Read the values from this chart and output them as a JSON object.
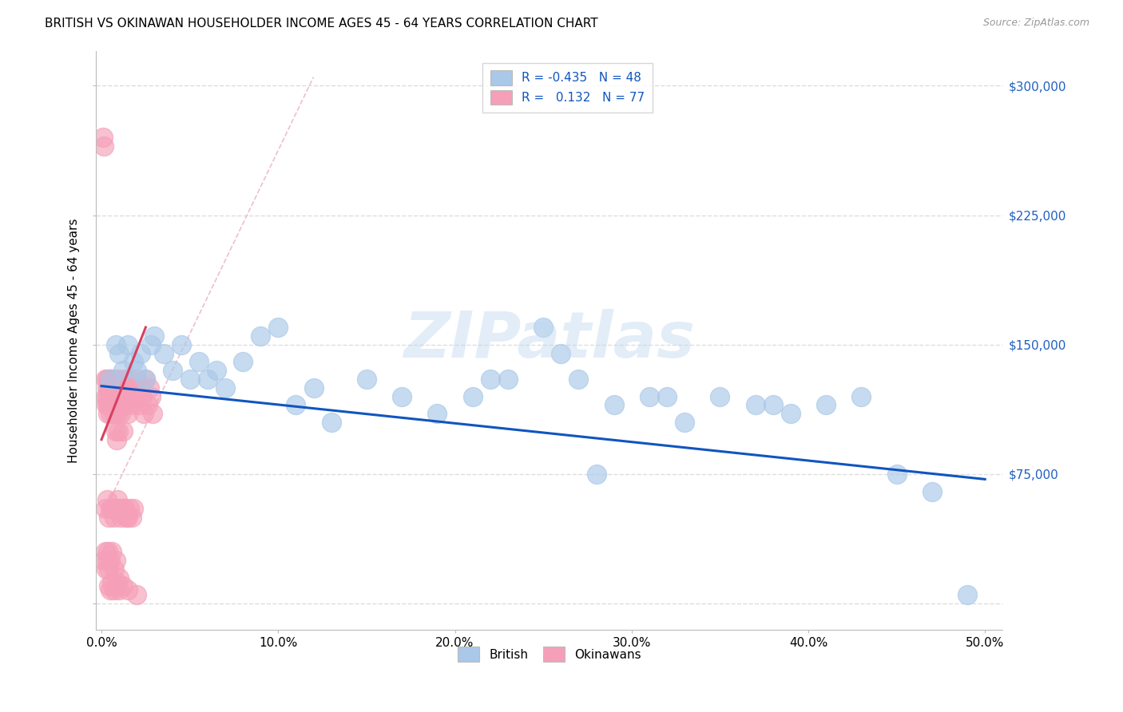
{
  "title": "BRITISH VS OKINAWAN HOUSEHOLDER INCOME AGES 45 - 64 YEARS CORRELATION CHART",
  "source": "Source: ZipAtlas.com",
  "ylabel": "Householder Income Ages 45 - 64 years",
  "y_ticks": [
    0,
    75000,
    150000,
    225000,
    300000
  ],
  "y_tick_labels_right": [
    "",
    "$75,000",
    "$150,000",
    "$225,000",
    "$300,000"
  ],
  "british_color": "#aac8e8",
  "okinawan_color": "#f5a0b8",
  "british_line_color": "#1055c0",
  "okinawan_line_color": "#d84060",
  "okinawan_dashed_color": "#e8a0b0",
  "watermark_text": "ZIPatlas",
  "legend_line1": "R = -0.435   N = 48",
  "legend_line2": "R =   0.132   N = 77",
  "british_x": [
    0.5,
    0.8,
    1.0,
    1.2,
    1.5,
    1.8,
    2.0,
    2.2,
    2.5,
    2.8,
    3.0,
    3.5,
    4.0,
    4.5,
    5.0,
    5.5,
    6.0,
    6.5,
    7.0,
    8.0,
    9.0,
    10.0,
    11.0,
    12.0,
    13.0,
    15.0,
    17.0,
    19.0,
    21.0,
    23.0,
    25.0,
    27.0,
    29.0,
    31.0,
    33.0,
    35.0,
    37.0,
    39.0,
    41.0,
    43.0,
    22.0,
    28.0,
    32.0,
    38.0,
    45.0,
    47.0,
    26.0,
    49.0
  ],
  "british_y": [
    130000,
    150000,
    145000,
    135000,
    150000,
    140000,
    135000,
    145000,
    130000,
    150000,
    155000,
    145000,
    135000,
    150000,
    130000,
    140000,
    130000,
    135000,
    125000,
    140000,
    155000,
    160000,
    115000,
    125000,
    105000,
    130000,
    120000,
    110000,
    120000,
    130000,
    160000,
    130000,
    115000,
    120000,
    105000,
    120000,
    115000,
    110000,
    115000,
    120000,
    130000,
    75000,
    120000,
    115000,
    75000,
    65000,
    145000,
    5000
  ],
  "okinawan_x": [
    0.1,
    0.15,
    0.2,
    0.2,
    0.25,
    0.3,
    0.3,
    0.3,
    0.35,
    0.35,
    0.4,
    0.4,
    0.45,
    0.45,
    0.5,
    0.5,
    0.5,
    0.55,
    0.55,
    0.6,
    0.6,
    0.65,
    0.65,
    0.7,
    0.7,
    0.75,
    0.75,
    0.8,
    0.8,
    0.85,
    0.85,
    0.9,
    0.9,
    0.95,
    0.95,
    1.0,
    1.0,
    1.1,
    1.1,
    1.2,
    1.2,
    1.3,
    1.3,
    1.4,
    1.5,
    1.5,
    1.6,
    1.7,
    1.8,
    1.9,
    2.0,
    2.1,
    2.2,
    2.3,
    2.4,
    2.5,
    2.6,
    2.7,
    2.8,
    2.9,
    0.2,
    0.3,
    0.4,
    0.5,
    0.6,
    0.7,
    0.8,
    0.9,
    1.0,
    1.1,
    1.2,
    1.3,
    1.4,
    1.5,
    1.6,
    1.7,
    1.8
  ],
  "okinawan_y": [
    270000,
    265000,
    130000,
    120000,
    115000,
    130000,
    125000,
    120000,
    115000,
    110000,
    130000,
    125000,
    120000,
    115000,
    130000,
    125000,
    110000,
    120000,
    115000,
    130000,
    125000,
    120000,
    115000,
    130000,
    110000,
    125000,
    115000,
    120000,
    100000,
    115000,
    95000,
    120000,
    110000,
    125000,
    100000,
    130000,
    115000,
    125000,
    110000,
    120000,
    100000,
    130000,
    115000,
    125000,
    120000,
    110000,
    130000,
    115000,
    125000,
    120000,
    130000,
    115000,
    125000,
    120000,
    110000,
    130000,
    115000,
    125000,
    120000,
    110000,
    55000,
    60000,
    50000,
    55000,
    55000,
    50000,
    55000,
    60000,
    55000,
    50000,
    55000,
    55000,
    50000,
    50000,
    55000,
    50000,
    55000
  ],
  "okinawan_low_x": [
    0.15,
    0.2,
    0.25,
    0.3,
    0.35,
    0.4,
    0.5,
    0.6,
    0.7,
    0.8,
    1.0
  ],
  "okinawan_low_y": [
    25000,
    30000,
    20000,
    25000,
    30000,
    20000,
    25000,
    30000,
    20000,
    25000,
    15000
  ],
  "okinawan_vlow_x": [
    0.4,
    0.5,
    0.6,
    0.7,
    0.8,
    0.9,
    1.0,
    1.2,
    1.5,
    2.0
  ],
  "okinawan_vlow_y": [
    10000,
    8000,
    12000,
    8000,
    10000,
    12000,
    8000,
    10000,
    8000,
    5000
  ]
}
